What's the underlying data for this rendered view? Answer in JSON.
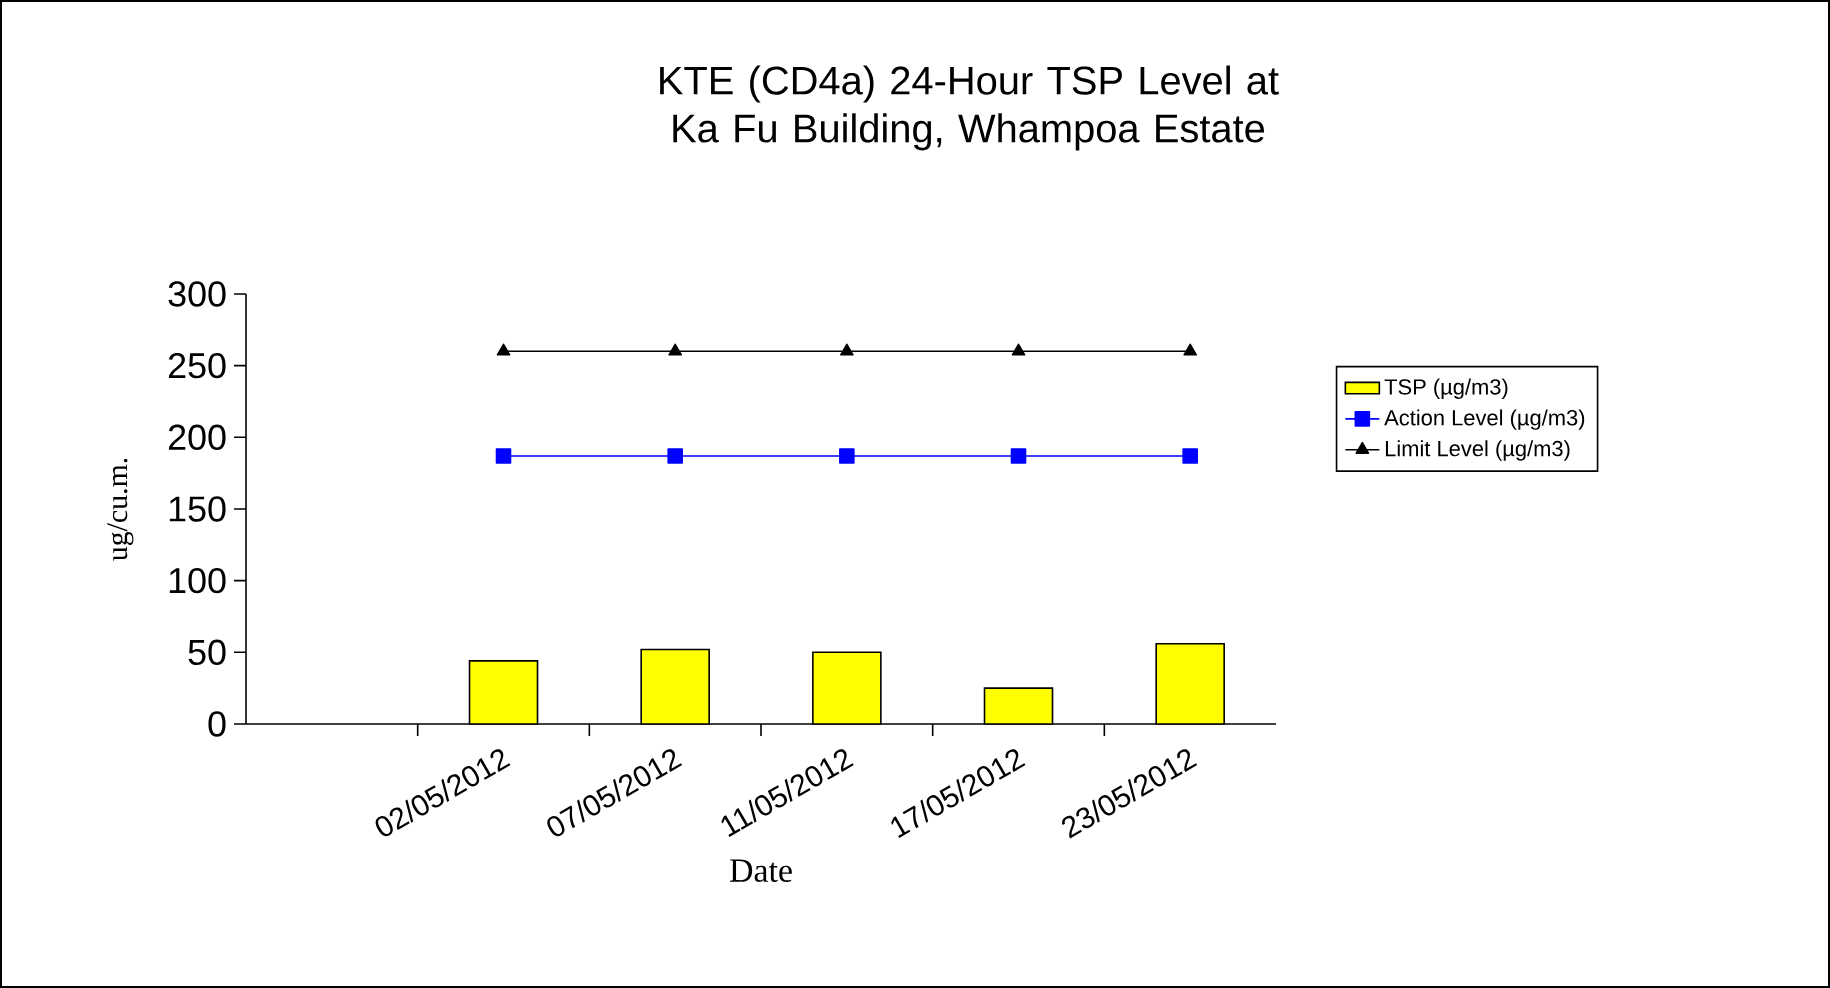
{
  "chart_data": {
    "type": "bar",
    "title": "KTE  (CD4a) 24-Hour TSP Level at Ka Fu Building, Whampoa Estate",
    "xlabel": "Date",
    "ylabel": "ug/cu.m.",
    "categories": [
      null,
      "02/05/2012",
      "07/05/2012",
      "11/05/2012",
      "17/05/2012",
      "23/05/2012"
    ],
    "series": [
      {
        "name": "TSP (µg/m3)",
        "color": "#ffff00",
        "values": [
          null,
          44,
          52,
          50,
          25,
          56
        ]
      },
      {
        "name": "Action Level (µg/m3)",
        "type": "line",
        "marker": "square",
        "color": "#0000ff",
        "values": [
          null,
          187,
          187,
          187,
          187,
          187
        ]
      },
      {
        "name": "Limit Level (µg/m3)",
        "type": "line",
        "marker": "triangle",
        "color": "#000000",
        "values": [
          null,
          260,
          260,
          260,
          260,
          260
        ]
      }
    ],
    "ylim": [
      0,
      300
    ],
    "yticks": [
      0,
      50,
      100,
      150,
      200,
      250,
      300
    ],
    "legend": "right"
  }
}
